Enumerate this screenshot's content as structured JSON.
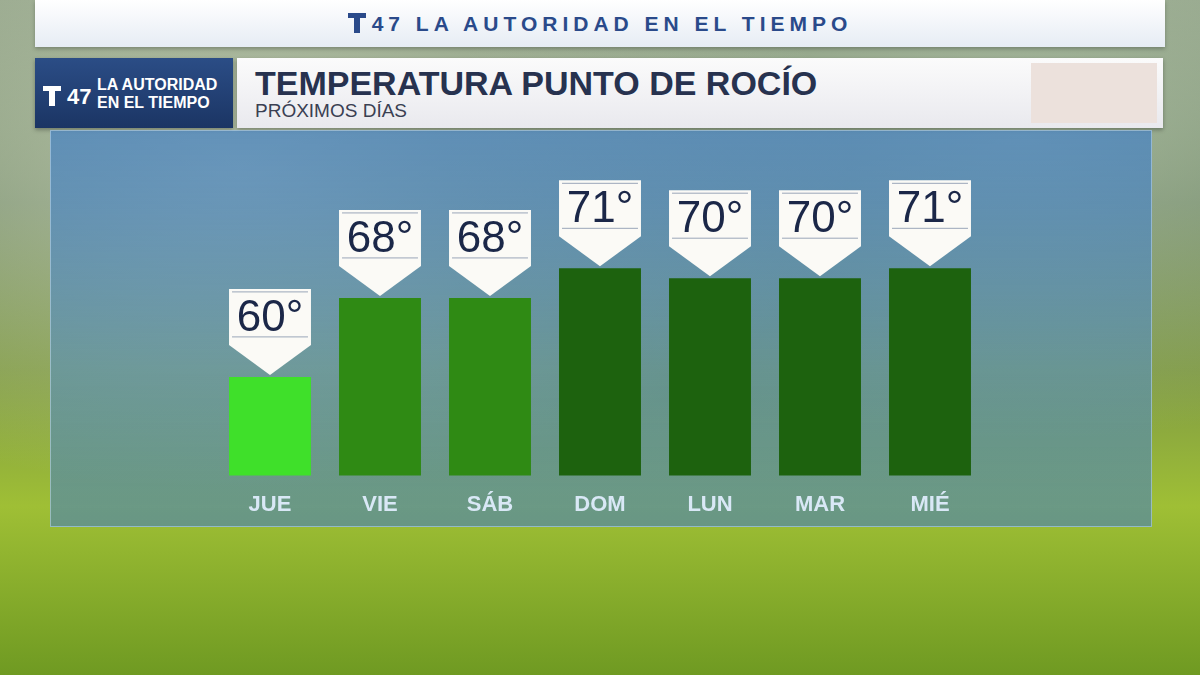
{
  "chart_data": {
    "type": "bar",
    "title": "TEMPERATURA PUNTO DE ROCÍO",
    "subtitle": "PRÓXIMOS DÍAS",
    "categories": [
      "JUE",
      "VIE",
      "SÁB",
      "DOM",
      "LUN",
      "MAR",
      "MIÉ"
    ],
    "values": [
      60,
      68,
      68,
      71,
      70,
      70,
      71
    ],
    "value_labels": [
      "60°",
      "68°",
      "68°",
      "71°",
      "70°",
      "70°",
      "71°"
    ],
    "colors": [
      "#3fe02a",
      "#2f8a14",
      "#2f8a14",
      "#1d620e",
      "#1d620e",
      "#1d620e",
      "#1d620e"
    ],
    "ylim": [
      50,
      84
    ],
    "tick_labels": "x",
    "grid": false,
    "data_labels": true
  },
  "branding": {
    "banner": "47 LA AUTORIDAD EN EL TIEMPO",
    "logo_number": "47",
    "logo_lines": [
      "LA AUTORIDAD",
      "EN EL TIEMPO"
    ]
  }
}
